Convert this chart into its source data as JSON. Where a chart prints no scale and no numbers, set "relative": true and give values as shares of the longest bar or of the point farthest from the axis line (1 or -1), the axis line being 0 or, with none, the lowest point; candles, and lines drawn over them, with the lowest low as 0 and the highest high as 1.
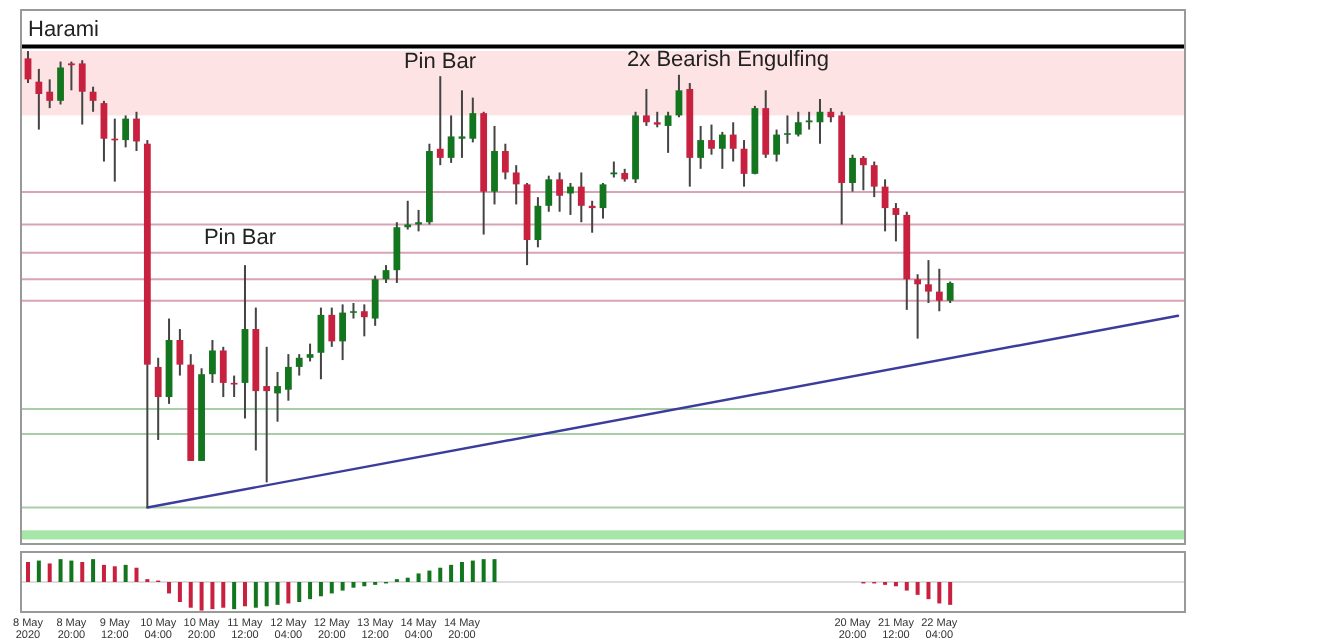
{
  "chart_data": [
    {
      "type": "candlestick",
      "relative": true,
      "tick_labels": false,
      "categories": [
        null,
        null,
        null,
        null,
        null,
        null,
        null,
        null,
        null,
        null,
        null,
        null,
        null,
        null,
        null,
        null,
        null,
        null,
        null,
        null,
        null,
        null,
        null,
        null,
        null,
        null,
        null,
        null,
        null,
        null,
        null,
        null,
        null,
        null,
        null,
        null,
        null,
        null,
        null,
        null,
        null,
        null,
        null,
        null,
        null,
        null,
        null,
        null,
        null,
        null,
        null,
        null,
        null,
        null,
        null,
        null,
        null,
        null,
        null,
        null,
        null,
        null,
        null,
        null,
        null,
        null,
        null,
        null,
        null,
        null,
        null,
        null,
        null,
        null,
        null,
        null,
        null,
        null,
        null,
        null,
        null,
        null,
        null,
        null,
        null,
        null,
        null,
        null,
        null,
        null,
        null,
        null,
        null,
        null,
        null,
        null,
        null,
        null,
        null,
        null,
        null,
        null,
        null,
        null,
        null,
        null,
        null
      ],
      "ohlc": [
        [
          0.984,
          1.0,
          0.93,
          0.938
        ],
        [
          0.933,
          0.961,
          0.828,
          0.906
        ],
        [
          0.911,
          0.938,
          0.875,
          0.891
        ],
        [
          0.891,
          0.977,
          0.883,
          0.964
        ],
        [
          0.973,
          0.977,
          0.914,
          0.969
        ],
        [
          0.973,
          0.98,
          0.839,
          0.911
        ],
        [
          0.911,
          0.922,
          0.867,
          0.891
        ],
        [
          0.886,
          0.891,
          0.758,
          0.808
        ],
        [
          0.808,
          0.852,
          0.714,
          0.805
        ],
        [
          0.805,
          0.859,
          0.789,
          0.852
        ],
        [
          0.852,
          0.867,
          0.781,
          0.802
        ],
        [
          0.797,
          0.805,
          0.0,
          0.313
        ],
        [
          0.308,
          0.328,
          0.148,
          0.242
        ],
        [
          0.242,
          0.414,
          0.227,
          0.367
        ],
        [
          0.367,
          0.391,
          0.289,
          0.313
        ],
        [
          0.313,
          0.336,
          0.102,
          0.102
        ],
        [
          0.102,
          0.305,
          0.102,
          0.292
        ],
        [
          0.292,
          0.367,
          0.273,
          0.344
        ],
        [
          0.344,
          0.352,
          0.242,
          0.273
        ],
        [
          0.273,
          0.289,
          0.242,
          0.27
        ],
        [
          0.273,
          0.531,
          0.195,
          0.391
        ],
        [
          0.391,
          0.438,
          0.125,
          0.255
        ],
        [
          0.266,
          0.352,
          0.055,
          0.255
        ],
        [
          0.25,
          0.297,
          0.188,
          0.266
        ],
        [
          0.258,
          0.336,
          0.234,
          0.308
        ],
        [
          0.308,
          0.336,
          0.289,
          0.328
        ],
        [
          0.328,
          0.359,
          0.32,
          0.336
        ],
        [
          0.339,
          0.438,
          0.281,
          0.422
        ],
        [
          0.422,
          0.438,
          0.352,
          0.364
        ],
        [
          0.364,
          0.445,
          0.323,
          0.427
        ],
        [
          0.427,
          0.448,
          0.414,
          0.43
        ],
        [
          0.43,
          0.445,
          0.375,
          0.417
        ],
        [
          0.414,
          0.508,
          0.398,
          0.5
        ],
        [
          0.5,
          0.531,
          0.492,
          0.52
        ],
        [
          0.52,
          0.625,
          0.492,
          0.614
        ],
        [
          0.614,
          0.672,
          0.609,
          0.62
        ],
        [
          0.62,
          0.652,
          0.605,
          0.625
        ],
        [
          0.625,
          0.797,
          0.62,
          0.781
        ],
        [
          0.786,
          0.945,
          0.75,
          0.766
        ],
        [
          0.766,
          0.859,
          0.755,
          0.813
        ],
        [
          0.808,
          0.914,
          0.766,
          0.813
        ],
        [
          0.808,
          0.898,
          0.8,
          0.864
        ],
        [
          0.864,
          0.867,
          0.598,
          0.692
        ],
        [
          0.692,
          0.836,
          0.664,
          0.781
        ],
        [
          0.781,
          0.797,
          0.719,
          0.734
        ],
        [
          0.734,
          0.75,
          0.664,
          0.708
        ],
        [
          0.708,
          0.711,
          0.531,
          0.586
        ],
        [
          0.586,
          0.68,
          0.57,
          0.661
        ],
        [
          0.661,
          0.727,
          0.648,
          0.719
        ],
        [
          0.719,
          0.734,
          0.648,
          0.683
        ],
        [
          0.688,
          0.711,
          0.641,
          0.703
        ],
        [
          0.703,
          0.734,
          0.625,
          0.661
        ],
        [
          0.661,
          0.672,
          0.602,
          0.656
        ],
        [
          0.656,
          0.711,
          0.633,
          0.708
        ],
        [
          0.73,
          0.758,
          0.723,
          0.734
        ],
        [
          0.733,
          0.742,
          0.714,
          0.719
        ],
        [
          0.719,
          0.867,
          0.711,
          0.859
        ],
        [
          0.859,
          0.917,
          0.836,
          0.844
        ],
        [
          0.844,
          0.867,
          0.833,
          0.839
        ],
        [
          0.836,
          0.867,
          0.777,
          0.859
        ],
        [
          0.859,
          0.948,
          0.855,
          0.914
        ],
        [
          0.917,
          0.93,
          0.703,
          0.766
        ],
        [
          0.766,
          0.836,
          0.742,
          0.805
        ],
        [
          0.805,
          0.839,
          0.773,
          0.786
        ],
        [
          0.786,
          0.823,
          0.742,
          0.817
        ],
        [
          0.817,
          0.844,
          0.758,
          0.786
        ],
        [
          0.786,
          0.805,
          0.703,
          0.731
        ],
        [
          0.731,
          0.88,
          0.73,
          0.875
        ],
        [
          0.875,
          0.914,
          0.766,
          0.773
        ],
        [
          0.773,
          0.828,
          0.758,
          0.817
        ],
        [
          0.817,
          0.859,
          0.797,
          0.82
        ],
        [
          0.817,
          0.867,
          0.813,
          0.844
        ],
        [
          0.844,
          0.867,
          0.828,
          0.848
        ],
        [
          0.844,
          0.895,
          0.797,
          0.867
        ],
        [
          0.867,
          0.875,
          0.844,
          0.855
        ],
        [
          0.859,
          0.867,
          0.62,
          0.711
        ],
        [
          0.711,
          0.773,
          0.692,
          0.766
        ],
        [
          0.766,
          0.77,
          0.695,
          0.75
        ],
        [
          0.75,
          0.758,
          0.68,
          0.703
        ],
        [
          0.703,
          0.719,
          0.605,
          0.656
        ],
        [
          0.656,
          0.667,
          0.583,
          0.641
        ],
        [
          0.641,
          0.648,
          0.433,
          0.5
        ],
        [
          0.5,
          0.511,
          0.37,
          0.489
        ],
        [
          0.489,
          0.542,
          0.448,
          0.473
        ],
        [
          0.473,
          0.523,
          0.43,
          0.453
        ],
        [
          0.453,
          0.495,
          0.448,
          0.492
        ],
        null,
        null,
        null,
        null,
        null,
        null,
        null,
        null,
        null,
        null,
        null,
        null,
        null,
        null,
        null,
        null,
        null,
        null,
        null,
        null,
        null
      ],
      "colors": [
        "#c8203f",
        "#c8203f",
        "#c8203f",
        "#13761f",
        "#c8203f",
        "#c8203f",
        "#c8203f",
        "#c8203f",
        "#c8203f",
        "#13761f",
        "#c8203f",
        "#c8203f",
        "#c8203f",
        "#13761f",
        "#c8203f",
        "#c8203f",
        "#13761f",
        "#13761f",
        "#c8203f",
        "#c8203f",
        "#13761f",
        "#c8203f",
        "#c8203f",
        "#13761f",
        "#13761f",
        "#13761f",
        "#13761f",
        "#13761f",
        "#c8203f",
        "#13761f",
        "#13761f",
        "#c8203f",
        "#13761f",
        "#13761f",
        "#13761f",
        "#13761f",
        "#13761f",
        "#13761f",
        "#c8203f",
        "#13761f",
        "#13761f",
        "#13761f",
        "#c8203f",
        "#13761f",
        "#c8203f",
        "#c8203f",
        "#c8203f",
        "#13761f",
        "#13761f",
        "#c8203f",
        "#13761f",
        "#c8203f",
        "#c8203f",
        "#13761f",
        "#13761f",
        "#c8203f",
        "#13761f",
        "#c8203f",
        "#c8203f",
        "#13761f",
        "#13761f",
        "#c8203f",
        "#13761f",
        "#c8203f",
        "#13761f",
        "#c8203f",
        "#c8203f",
        "#13761f",
        "#c8203f",
        "#13761f",
        "#13761f",
        "#13761f",
        "#13761f",
        "#13761f",
        "#c8203f",
        "#c8203f",
        "#13761f",
        "#c8203f",
        "#c8203f",
        "#c8203f",
        "#c8203f",
        "#c8203f",
        "#c8203f",
        "#c8203f",
        "#c8203f",
        "#13761f",
        null,
        null,
        null,
        null,
        null,
        null,
        null,
        null,
        null,
        null,
        null,
        null,
        null,
        null,
        null,
        null,
        null,
        null,
        null,
        null,
        null
      ],
      "series": [
        {
          "type": "line",
          "color": "#3c3c9c",
          "values": [
            null,
            null,
            null,
            null,
            null,
            null,
            null,
            null,
            null,
            null,
            null,
            0,
            null,
            null,
            null,
            null,
            null,
            null,
            null,
            null,
            null,
            null,
            null,
            null,
            null,
            null,
            null,
            null,
            null,
            null,
            null,
            null,
            null,
            null,
            null,
            null,
            null,
            null,
            null,
            null,
            null,
            null,
            null,
            null,
            null,
            null,
            null,
            null,
            null,
            null,
            null,
            null,
            null,
            null,
            null,
            null,
            null,
            null,
            null,
            null,
            null,
            null,
            null,
            null,
            null,
            null,
            null,
            null,
            null,
            null,
            null,
            null,
            null,
            null,
            null,
            null,
            null,
            null,
            null,
            null,
            null,
            null,
            null,
            null,
            null,
            null,
            null,
            null,
            null,
            null,
            null,
            null,
            null,
            null,
            null,
            null,
            null,
            null,
            null,
            null,
            null,
            null,
            null,
            null,
            null,
            null,
            0.42
          ]
        }
      ],
      "ref_lines": [
        {
          "axis": "y",
          "value": 1.01,
          "color": "#000000"
        },
        {
          "axis": "y",
          "value": 0.691,
          "color": "#d8a3b3"
        },
        {
          "axis": "y",
          "value": 0.62,
          "color": "#d8a3b3"
        },
        {
          "axis": "y",
          "value": 0.558,
          "color": "#d8a3b3"
        },
        {
          "axis": "y",
          "value": 0.5,
          "color": "#d8a3b3"
        },
        {
          "axis": "y",
          "value": 0.453,
          "color": "#d8a3b3"
        },
        {
          "axis": "y",
          "value": 0.216,
          "color": "#a9cda9"
        },
        {
          "axis": "y",
          "value": 0.161,
          "color": "#a9cda9"
        },
        {
          "axis": "y",
          "value": 0,
          "color": "#a9cda9"
        }
      ],
      "bands": [
        {
          "axis": "y",
          "from": 0.859,
          "to": 1.0,
          "color": "#fde3e3"
        },
        {
          "axis": "y",
          "from": -0.07,
          "to": -0.05,
          "color": "#a6e6a6"
        }
      ],
      "annotations": [
        "Harami",
        "Pin Bar",
        "Pin Bar",
        "2x Bearish Engulfing"
      ]
    },
    {
      "type": "bar",
      "relative": true,
      "tick_labels": "x",
      "categories": [
        "8 May 2020",
        null,
        null,
        null,
        "8 May 20:00",
        null,
        null,
        null,
        "9 May 12:00",
        null,
        null,
        null,
        "10 May 04:00",
        null,
        null,
        null,
        "10 May 20:00",
        null,
        null,
        null,
        "11 May 12:00",
        null,
        null,
        null,
        "12 May 04:00",
        null,
        null,
        null,
        "12 May 20:00",
        null,
        null,
        null,
        "13 May 12:00",
        null,
        null,
        null,
        "14 May 04:00",
        null,
        null,
        null,
        "14 May 20:00",
        null,
        null,
        null,
        null,
        null,
        null,
        null,
        null,
        null,
        null,
        null,
        null,
        null,
        null,
        null,
        null,
        null,
        null,
        null,
        null,
        null,
        null,
        null,
        null,
        null,
        null,
        null,
        null,
        null,
        null,
        null,
        null,
        null,
        null,
        null,
        "20 May 20:00",
        null,
        null,
        null,
        "21 May 12:00",
        null,
        null,
        null,
        "22 May 04:00",
        null,
        null,
        null,
        null,
        null,
        null,
        null,
        null,
        null,
        null,
        null,
        null,
        null,
        null,
        null,
        null,
        null,
        null,
        null,
        null,
        null,
        null
      ],
      "values": [
        0.7,
        0.75,
        0.65,
        0.8,
        0.75,
        0.7,
        0.8,
        0.6,
        0.55,
        0.6,
        0.5,
        0.1,
        0.05,
        -0.4,
        -0.7,
        -0.9,
        -1,
        -0.95,
        -0.9,
        -0.95,
        -0.85,
        -0.9,
        -0.85,
        -0.8,
        -0.75,
        -0.7,
        -0.6,
        -0.5,
        -0.4,
        -0.3,
        -0.2,
        -0.15,
        -0.1,
        -0.05,
        0.1,
        0.15,
        0.3,
        0.4,
        0.5,
        0.6,
        0.7,
        0.75,
        0.8,
        0.8,
        null,
        null,
        null,
        null,
        null,
        null,
        null,
        null,
        null,
        null,
        null,
        null,
        null,
        null,
        null,
        null,
        null,
        null,
        null,
        null,
        null,
        null,
        null,
        null,
        null,
        null,
        null,
        null,
        null,
        null,
        null,
        null,
        null,
        -0.05,
        -0.05,
        -0.1,
        -0.15,
        -0.3,
        -0.45,
        -0.6,
        -0.75,
        -0.8,
        null,
        null,
        null,
        null,
        null,
        null,
        null,
        null,
        null,
        null,
        null,
        null,
        null,
        null,
        null,
        null,
        null,
        null,
        null,
        null,
        null
      ],
      "colors": [
        "#c8203f",
        "#13761f",
        "#c8203f",
        "#13761f",
        "#13761f",
        "#c8203f",
        "#13761f",
        "#c8203f",
        "#c8203f",
        "#13761f",
        "#c8203f",
        "#c8203f",
        "#c8203f",
        "#c8203f",
        "#c8203f",
        "#c8203f",
        "#c8203f",
        "#c8203f",
        "#c8203f",
        "#13761f",
        "#c8203f",
        "#13761f",
        "#13761f",
        "#13761f",
        "#c8203f",
        "#13761f",
        "#13761f",
        "#13761f",
        "#13761f",
        "#13761f",
        "#13761f",
        "#13761f",
        "#13761f",
        "#13761f",
        "#13761f",
        "#13761f",
        "#13761f",
        "#13761f",
        "#13761f",
        "#13761f",
        "#13761f",
        "#13761f",
        "#13761f",
        "#13761f",
        null,
        null,
        null,
        null,
        null,
        null,
        null,
        null,
        null,
        null,
        null,
        null,
        null,
        null,
        null,
        null,
        null,
        null,
        null,
        null,
        null,
        null,
        null,
        null,
        null,
        null,
        null,
        null,
        null,
        null,
        null,
        null,
        null,
        "#c8203f",
        "#c8203f",
        "#c8203f",
        "#c8203f",
        "#c8203f",
        "#c8203f",
        "#c8203f",
        "#c8203f",
        "#c8203f",
        null,
        null,
        null,
        null,
        null,
        null,
        null,
        null,
        null,
        null,
        null,
        null,
        null,
        null,
        null,
        null,
        null,
        null,
        null,
        null,
        null
      ]
    }
  ]
}
